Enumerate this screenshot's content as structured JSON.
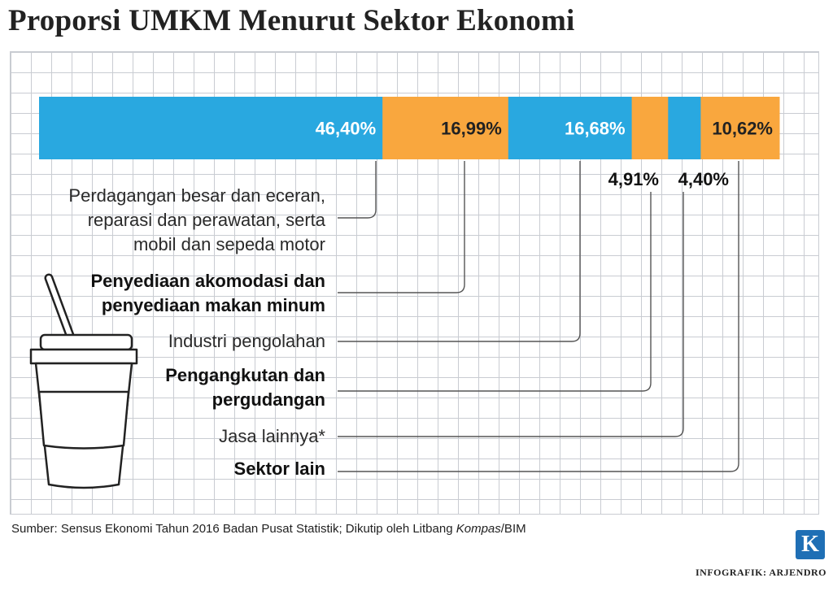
{
  "title": "Proporsi UMKM Menurut Sektor Ekonomi",
  "chart_data": {
    "type": "bar",
    "stacked": true,
    "orientation": "horizontal",
    "title": "Proporsi UMKM Menurut Sektor Ekonomi",
    "unit": "%",
    "series": [
      {
        "name": "Perdagangan besar dan eceran, reparasi dan perawatan, serta mobil dan sepeda motor",
        "value": 46.4,
        "label": "46,40%",
        "color": "#29a8e0"
      },
      {
        "name": "Penyediaan akomodasi dan penyediaan makan minum",
        "value": 16.99,
        "label": "16,99%",
        "color": "#f9a73e"
      },
      {
        "name": "Industri pengolahan",
        "value": 16.68,
        "label": "16,68%",
        "color": "#29a8e0"
      },
      {
        "name": "Pengangkutan dan pergudangan",
        "value": 4.91,
        "label": "4,91%",
        "color": "#f9a73e"
      },
      {
        "name": "Jasa lainnya*",
        "value": 4.4,
        "label": "4,40%",
        "color": "#29a8e0"
      },
      {
        "name": "Sektor lain",
        "value": 10.62,
        "label": "10,62%",
        "color": "#f9a73e"
      }
    ]
  },
  "labels": {
    "s1": [
      "Perdagangan besar dan eceran,",
      "reparasi dan perawatan, serta",
      "mobil dan sepeda motor"
    ],
    "s2": [
      "Penyediaan akomodasi dan",
      "penyediaan makan minum"
    ],
    "s3": [
      "Industri pengolahan"
    ],
    "s4": [
      "Pengangkutan dan",
      "pergudangan"
    ],
    "s5": [
      "Jasa lainnya*"
    ],
    "s6": [
      "Sektor lain"
    ]
  },
  "source": {
    "prefix": "Sumber: Sensus Ekonomi Tahun 2016 Badan Pusat Statistik; Dikutip oleh Litbang ",
    "italic": "Kompas",
    "suffix": "/BIM"
  },
  "logo_letter": "K",
  "credit": "INFOGRAFIK: ARJENDRO",
  "colors": {
    "blue": "#29a8e0",
    "orange": "#f9a73e",
    "leader": "#555555"
  }
}
